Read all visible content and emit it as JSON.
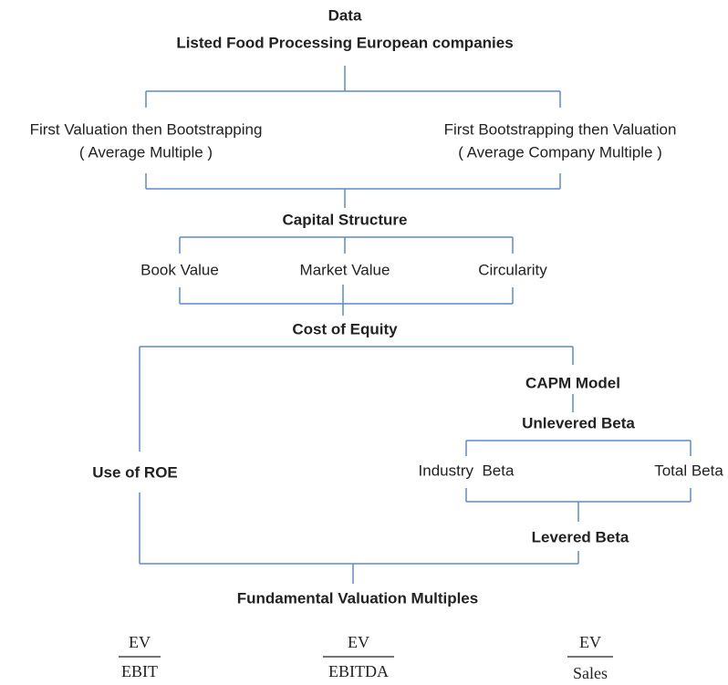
{
  "title": "Data",
  "subtitle": "Listed Food Processing European companies",
  "approaches": [
    {
      "label": "First Valuation then Bootstrapping",
      "sublabel": "( Average Multiple )"
    },
    {
      "label": "First Bootstrapping then Valuation",
      "sublabel": "( Average Company Multiple )"
    }
  ],
  "capital_structure": {
    "title": "Capital Structure",
    "options": [
      "Book Value",
      "Market Value",
      "Circularity"
    ]
  },
  "cost_of_equity": {
    "title": "Cost of Equity",
    "left": "Use of ROE",
    "right": {
      "model": "CAPM Model",
      "unlevered": "Unlevered Beta",
      "betas": [
        "Industry  Beta",
        "Total Beta"
      ],
      "levered": "Levered Beta"
    }
  },
  "multiples": {
    "title": "Fundamental Valuation Multiples",
    "items": [
      {
        "numerator": "EV",
        "denominator": "EBIT"
      },
      {
        "numerator": "EV",
        "denominator": "EBITDA"
      },
      {
        "numerator": "EV",
        "denominator": "Sales"
      }
    ]
  }
}
